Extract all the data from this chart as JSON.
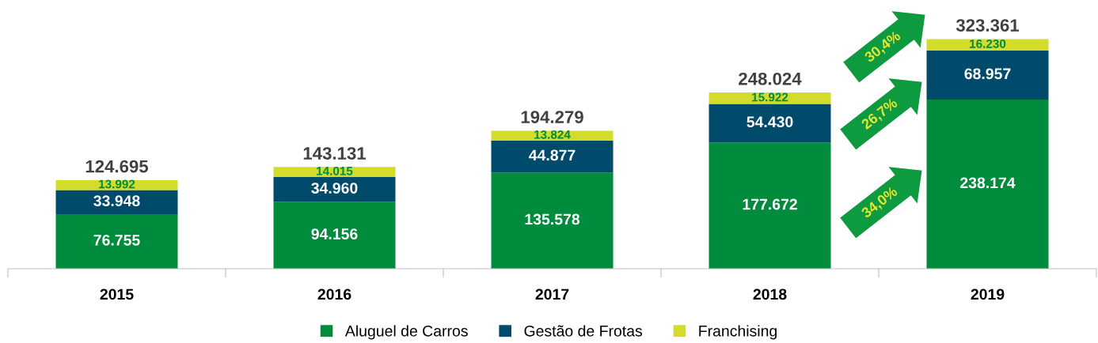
{
  "chart_data": {
    "type": "bar",
    "stacked": true,
    "legend": "bottom",
    "grid": false,
    "categories": [
      "2015",
      "2016",
      "2017",
      "2018",
      "2019"
    ],
    "series": [
      {
        "name": "Aluguel de Carros",
        "color": "#008c3c",
        "values": [
          76755,
          94156,
          135578,
          177672,
          238174
        ],
        "value_labels": [
          "76.755",
          "94.156",
          "135.578",
          "177.672",
          "238.174"
        ]
      },
      {
        "name": "Gestão de Frotas",
        "color": "#004b6b",
        "values": [
          33948,
          34960,
          44877,
          54430,
          68957
        ],
        "value_labels": [
          "33.948",
          "34.960",
          "44.877",
          "54.430",
          "68.957"
        ]
      },
      {
        "name": "Franchising",
        "color": "#d3dc2b",
        "values": [
          13992,
          14015,
          13824,
          15922,
          16230
        ],
        "value_labels": [
          "13.992",
          "14.015",
          "13.824",
          "15.922",
          "16.230"
        ]
      }
    ],
    "totals": [
      "124.695",
      "143.131",
      "194.279",
      "248.024",
      "323.361"
    ],
    "annotations": [
      "34,0%",
      "26,7%",
      "30,4%"
    ]
  }
}
